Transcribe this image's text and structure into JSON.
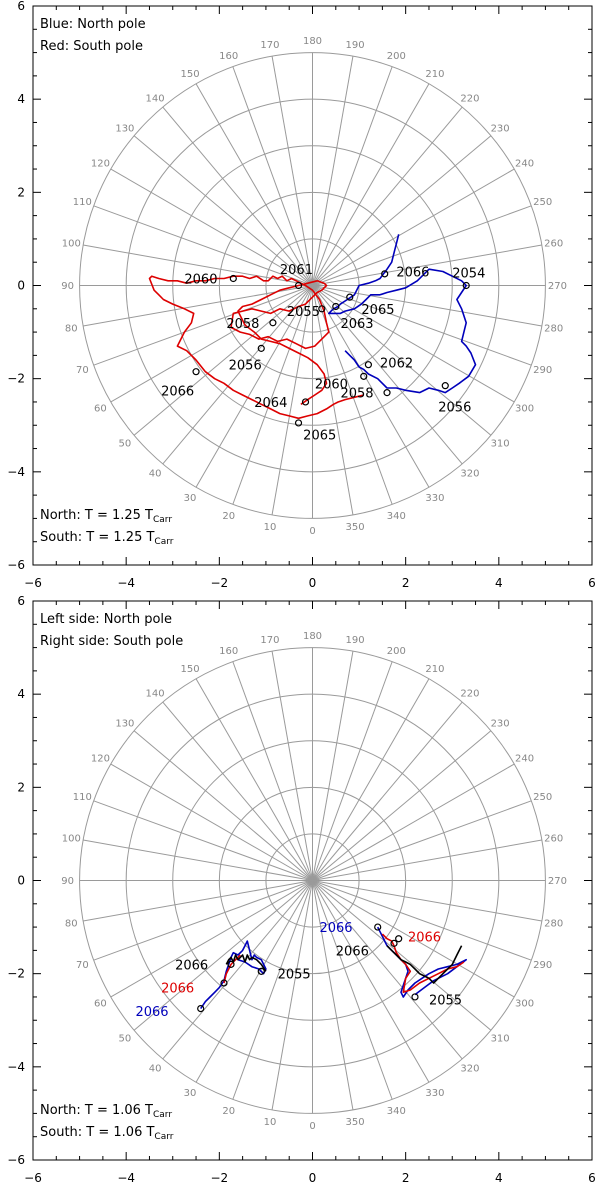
{
  "colors": {
    "north": "#0000bb",
    "south": "#dd0000",
    "black": "#000000",
    "grid": "#9a9a9a"
  },
  "chart_data": [
    {
      "type": "polar-trajectory",
      "title": "",
      "xlim": [
        -6,
        6
      ],
      "ylim": [
        -6,
        6
      ],
      "x_ticks": [
        -6,
        -4,
        -2,
        0,
        2,
        4,
        6
      ],
      "y_ticks": [
        -6,
        -4,
        -2,
        0,
        2,
        4,
        6
      ],
      "x_tick_labels": [
        "−6",
        "−4",
        "−2",
        "0",
        "2",
        "4",
        "6"
      ],
      "y_tick_labels": [
        "−6",
        "−4",
        "−2",
        "0",
        "2",
        "4",
        "6"
      ],
      "grid_radii": [
        1,
        2,
        3,
        4,
        5
      ],
      "angle_labels": [
        "0",
        "10",
        "20",
        "30",
        "40",
        "50",
        "60",
        "70",
        "80",
        "90",
        "100",
        "110",
        "120",
        "130",
        "140",
        "150",
        "160",
        "170",
        "180",
        "190",
        "200",
        "210",
        "220",
        "230",
        "240",
        "250",
        "260",
        "270",
        "280",
        "290",
        "300",
        "310",
        "320",
        "330",
        "340",
        "350"
      ],
      "legend": [
        {
          "text": "Blue: North pole",
          "color": "#0000bb"
        },
        {
          "text": "Red: South pole",
          "color": "#dd0000"
        }
      ],
      "period": [
        {
          "prefix": "North: T = 1.25 T",
          "sub": "Carr",
          "color": "#0000bb"
        },
        {
          "prefix": "South: T = 1.25 T",
          "sub": "Carr",
          "color": "#dd0000"
        }
      ],
      "series": [
        {
          "name": "North pole",
          "color": "#0000bb",
          "x": [
            1.85,
            1.8,
            1.75,
            1.7,
            1.6,
            1.5,
            1.45,
            1.35,
            1.2,
            1.0,
            0.9,
            0.75,
            0.6,
            0.55,
            0.45,
            0.4,
            0.35,
            0.6,
            0.7,
            0.9,
            1.05,
            1.15,
            1.25,
            1.45,
            1.6,
            1.8,
            2.0,
            2.25,
            2.5,
            2.8,
            3.0,
            3.2,
            3.3,
            3.1,
            3.2,
            3.3,
            3.25,
            3.2,
            3.3,
            3.4,
            3.5,
            3.35,
            3.15,
            3.0,
            2.85,
            2.7,
            2.5,
            2.3,
            2.0,
            1.8,
            1.6,
            1.4,
            1.2,
            1.1,
            1.0,
            0.9,
            0.8,
            0.7
          ],
          "y": [
            1.1,
            0.9,
            0.7,
            0.5,
            0.35,
            0.22,
            0.15,
            0.1,
            0.05,
            0.0,
            -0.2,
            -0.3,
            -0.4,
            -0.45,
            -0.5,
            -0.55,
            -0.6,
            -0.6,
            -0.55,
            -0.5,
            -0.4,
            -0.3,
            -0.2,
            -0.2,
            -0.15,
            -0.1,
            -0.05,
            0.1,
            0.35,
            0.3,
            0.2,
            0.1,
            0.0,
            -0.3,
            -0.5,
            -0.8,
            -1.0,
            -1.2,
            -1.3,
            -1.45,
            -1.7,
            -1.95,
            -2.1,
            -2.2,
            -2.3,
            -2.25,
            -2.2,
            -2.3,
            -2.25,
            -2.2,
            -2.2,
            -2.0,
            -1.9,
            -1.8,
            -1.75,
            -1.6,
            -1.5,
            -1.4
          ]
        },
        {
          "name": "South pole",
          "color": "#dd0000",
          "x": [
            1.1,
            0.9,
            0.7,
            0.55,
            0.45,
            0.3,
            0.1,
            -0.1,
            -0.3,
            -0.5,
            -0.7,
            -0.9,
            -1.1,
            -1.3,
            -1.5,
            -1.7,
            -1.9,
            -2.1,
            -2.3,
            -2.5,
            -2.7,
            -2.9,
            -2.75,
            -2.6,
            -2.55,
            -2.75,
            -3.0,
            -3.2,
            -3.3,
            -3.4,
            -3.5,
            -3.45,
            -3.3,
            -3.1,
            -2.9,
            -2.7,
            -2.5,
            -2.3,
            -2.1,
            -1.9,
            -1.7,
            -1.5,
            -1.35,
            -1.2,
            -1.05,
            -0.95,
            -0.85,
            -0.75,
            -0.65,
            -0.55,
            -0.45,
            -0.35,
            -0.25,
            -0.15,
            0.0,
            0.15,
            0.25,
            0.3,
            0.35,
            0.2,
            0.05,
            -0.15,
            -0.35,
            -0.55,
            -0.75,
            -0.95,
            -1.15,
            -1.35,
            -1.55,
            -1.75,
            -1.7,
            -1.5,
            -1.3,
            -1.1,
            -0.9,
            -0.7,
            -0.5,
            -0.3,
            -0.15,
            0.0,
            0.1,
            0.2,
            0.3,
            0.25,
            0.1,
            -0.1,
            -0.3,
            -0.5,
            -0.7,
            -0.9,
            -1.1,
            -1.3,
            -1.5,
            -1.6,
            -1.45,
            -1.25,
            -1.1,
            -0.9,
            -0.7,
            -0.5,
            -0.3,
            -0.1,
            0.1,
            0.25,
            0.3,
            0.2,
            0.05,
            -0.1,
            -0.25
          ],
          "y": [
            -2.35,
            -2.4,
            -2.45,
            -2.5,
            -2.55,
            -2.65,
            -2.75,
            -2.8,
            -2.85,
            -2.8,
            -2.75,
            -2.65,
            -2.55,
            -2.45,
            -2.35,
            -2.25,
            -2.1,
            -2.0,
            -1.85,
            -1.6,
            -1.4,
            -1.3,
            -1.0,
            -0.8,
            -0.6,
            -0.5,
            -0.4,
            -0.3,
            -0.2,
            -0.1,
            0.15,
            0.2,
            0.15,
            0.1,
            0.1,
            0.05,
            0.1,
            0.1,
            0.15,
            0.15,
            0.2,
            0.2,
            0.15,
            0.2,
            0.1,
            0.1,
            0.2,
            0.15,
            0.2,
            0.1,
            0.15,
            0.1,
            0.05,
            0.0,
            -0.1,
            -0.3,
            -0.55,
            -0.8,
            -1.0,
            -1.15,
            -1.3,
            -1.35,
            -1.25,
            -1.15,
            -1.2,
            -1.1,
            -1.15,
            -1.05,
            -1.0,
            -0.9,
            -0.6,
            -0.55,
            -0.5,
            -0.55,
            -0.6,
            -0.5,
            -0.55,
            -0.45,
            -0.4,
            -0.25,
            -0.15,
            -0.1,
            0.0,
            0.05,
            0.1,
            0.05,
            0.0,
            -0.05,
            -0.1,
            -0.2,
            -0.3,
            -0.4,
            -0.45,
            -0.55,
            -0.85,
            -1.0,
            -1.15,
            -1.2,
            -1.25,
            -1.35,
            -1.45,
            -1.55,
            -1.7,
            -1.9,
            -2.1,
            -2.25,
            -2.35,
            -2.45,
            -2.55
          ]
        }
      ],
      "annotations": [
        {
          "text": "2054",
          "x": 3.3,
          "y": 0.0,
          "color": "#000000",
          "dx": -0.3,
          "dy": 0.28
        },
        {
          "text": "2066",
          "x": 1.55,
          "y": 0.25,
          "color": "#000000",
          "dx": 0.25,
          "dy": 0.05
        },
        {
          "text": "2065",
          "x": 0.8,
          "y": -0.25,
          "color": "#000000",
          "dx": 0.25,
          "dy": -0.25
        },
        {
          "text": "2063",
          "x": 0.5,
          "y": -0.45,
          "color": "#000000",
          "dx": 0.1,
          "dy": -0.35
        },
        {
          "text": "2062",
          "x": 1.2,
          "y": -1.7,
          "color": "#000000",
          "dx": 0.25,
          "dy": 0.05
        },
        {
          "text": "2060",
          "x": 1.1,
          "y": -1.95,
          "color": "#000000",
          "dx": -1.05,
          "dy": -0.15
        },
        {
          "text": "2058",
          "x": 1.6,
          "y": -2.3,
          "color": "#000000",
          "dx": -1.0,
          "dy": 0.0
        },
        {
          "text": "2056",
          "x": 2.85,
          "y": -2.15,
          "color": "#000000",
          "dx": -0.15,
          "dy": -0.45
        },
        {
          "text": "2061",
          "x": -0.3,
          "y": 0.0,
          "color": "#000000",
          "dx": -0.4,
          "dy": 0.35
        },
        {
          "text": "2060",
          "x": -1.7,
          "y": 0.15,
          "color": "#000000",
          "dx": -1.05,
          "dy": 0.0
        },
        {
          "text": "2055",
          "x": 0.2,
          "y": -0.5,
          "color": "#000000",
          "dx": -0.75,
          "dy": -0.05
        },
        {
          "text": "2058",
          "x": -0.85,
          "y": -0.8,
          "color": "#000000",
          "dx": -1.0,
          "dy": 0.0
        },
        {
          "text": "2056",
          "x": -1.1,
          "y": -1.35,
          "color": "#000000",
          "dx": -0.7,
          "dy": -0.35
        },
        {
          "text": "2066",
          "x": -2.5,
          "y": -1.85,
          "color": "#000000",
          "dx": -0.75,
          "dy": -0.4
        },
        {
          "text": "2064",
          "x": -0.15,
          "y": -2.5,
          "color": "#000000",
          "dx": -1.1,
          "dy": 0.0
        },
        {
          "text": "2065",
          "x": -0.3,
          "y": -2.95,
          "color": "#000000",
          "dx": 0.1,
          "dy": -0.25
        }
      ]
    },
    {
      "type": "polar-trajectory",
      "title": "",
      "xlim": [
        -6,
        6
      ],
      "ylim": [
        -6,
        6
      ],
      "x_ticks": [
        -6,
        -4,
        -2,
        0,
        2,
        4,
        6
      ],
      "y_ticks": [
        -6,
        -4,
        -2,
        0,
        2,
        4,
        6
      ],
      "x_tick_labels": [
        "−6",
        "−4",
        "−2",
        "0",
        "2",
        "4",
        "6"
      ],
      "y_tick_labels": [
        "−6",
        "−4",
        "−2",
        "0",
        "2",
        "4",
        "6"
      ],
      "grid_radii": [
        1,
        2,
        3,
        4,
        5
      ],
      "angle_labels": [
        "0",
        "10",
        "20",
        "30",
        "40",
        "50",
        "60",
        "70",
        "80",
        "90",
        "100",
        "110",
        "120",
        "130",
        "140",
        "150",
        "160",
        "170",
        "180",
        "190",
        "200",
        "210",
        "220",
        "230",
        "240",
        "250",
        "260",
        "270",
        "280",
        "290",
        "300",
        "310",
        "320",
        "330",
        "340",
        "350"
      ],
      "legend": [
        {
          "text": "Left side: North pole",
          "color": "#000000"
        },
        {
          "text": "Right side: South pole",
          "color": "#000000"
        }
      ],
      "period": [
        {
          "prefix": "North: T = 1.06 T",
          "sub": "Carr",
          "color": "#000000"
        },
        {
          "prefix": "South: T = 1.06 T",
          "sub": "Carr",
          "color": "#000000"
        }
      ],
      "series": [
        {
          "name": "North pole (blue)",
          "color": "#0000bb",
          "x": [
            -2.4,
            -2.3,
            -2.2,
            -2.1,
            -2.0,
            -1.9,
            -1.85,
            -1.8,
            -1.75,
            -1.7,
            -1.6,
            -1.5,
            -1.45,
            -1.4,
            -1.35,
            -1.3,
            -1.25,
            -1.2,
            -1.1,
            -1.05,
            -1.0,
            -1.05,
            -1.15,
            -1.3,
            -1.45,
            -1.6
          ],
          "y": [
            -2.75,
            -2.6,
            -2.5,
            -2.4,
            -2.3,
            -2.15,
            -1.95,
            -1.8,
            -1.65,
            -1.55,
            -1.6,
            -1.5,
            -1.4,
            -1.3,
            -1.5,
            -1.7,
            -1.6,
            -1.65,
            -1.7,
            -1.8,
            -1.9,
            -2.0,
            -1.9,
            -1.85,
            -1.75,
            -1.7
          ]
        },
        {
          "name": "North pole (red)",
          "color": "#dd0000",
          "x": [
            -1.9,
            -1.85,
            -1.8,
            -1.75,
            -1.7,
            -1.65,
            -1.6,
            -1.55
          ],
          "y": [
            -2.2,
            -2.0,
            -1.9,
            -1.8,
            -1.75,
            -1.7,
            -1.65,
            -1.6
          ]
        },
        {
          "name": "North pole (black)",
          "color": "#000000",
          "x": [
            -1.85,
            -1.8,
            -1.75,
            -1.7,
            -1.65,
            -1.6,
            -1.55,
            -1.5,
            -1.45,
            -1.4,
            -1.35,
            -1.3,
            -1.2,
            -1.1,
            -1.0
          ],
          "y": [
            -1.8,
            -1.7,
            -1.65,
            -1.75,
            -1.6,
            -1.7,
            -1.65,
            -1.6,
            -1.75,
            -1.6,
            -1.7,
            -1.65,
            -1.7,
            -1.8,
            -1.95
          ]
        },
        {
          "name": "South pole (blue)",
          "color": "#0000bb",
          "x": [
            1.4,
            1.45,
            1.5,
            1.55,
            1.6,
            1.7,
            1.8,
            1.9,
            2.0,
            2.05,
            2.0,
            1.95,
            1.9,
            1.95,
            2.05,
            2.2,
            2.35,
            2.5,
            2.7,
            2.9,
            3.1,
            3.3,
            3.1,
            2.9,
            2.6,
            2.4,
            2.2
          ],
          "y": [
            -1.0,
            -1.1,
            -1.2,
            -1.3,
            -1.4,
            -1.5,
            -1.6,
            -1.7,
            -1.8,
            -1.95,
            -2.1,
            -2.25,
            -2.4,
            -2.5,
            -2.35,
            -2.2,
            -2.1,
            -2.0,
            -1.9,
            -1.85,
            -1.8,
            -1.7,
            -1.85,
            -2.0,
            -2.15,
            -2.3,
            -2.45
          ]
        },
        {
          "name": "South pole (red)",
          "color": "#dd0000",
          "x": [
            1.5,
            1.6,
            1.7,
            1.75,
            1.8,
            1.9,
            2.0,
            2.1,
            2.0,
            1.95,
            2.1,
            2.3,
            2.5,
            2.7,
            2.9,
            3.1,
            3.25
          ],
          "y": [
            -1.15,
            -1.25,
            -1.3,
            -1.4,
            -1.55,
            -1.7,
            -1.8,
            -1.95,
            -2.1,
            -2.4,
            -2.35,
            -2.2,
            -2.1,
            -2.0,
            -1.9,
            -1.85,
            -1.75
          ]
        },
        {
          "name": "South pole (black)",
          "color": "#000000",
          "x": [
            1.6,
            1.7,
            1.8,
            1.9,
            2.0,
            2.1,
            2.2,
            2.3,
            2.4,
            2.5,
            2.6,
            2.7,
            2.85,
            3.0,
            3.1,
            3.2
          ],
          "y": [
            -1.4,
            -1.5,
            -1.6,
            -1.7,
            -1.75,
            -1.8,
            -1.9,
            -2.0,
            -2.05,
            -2.1,
            -2.2,
            -2.1,
            -1.95,
            -1.8,
            -1.6,
            -1.4
          ]
        }
      ],
      "annotations": [
        {
          "text": "2066",
          "x": -2.4,
          "y": -2.75,
          "color": "#0000bb",
          "dx": -1.4,
          "dy": -0.05
        },
        {
          "text": "2066",
          "x": -1.9,
          "y": -2.2,
          "color": "#dd0000",
          "dx": -1.35,
          "dy": -0.1
        },
        {
          "text": "2066",
          "x": -1.75,
          "y": -1.8,
          "color": "#000000",
          "dx": -1.2,
          "dy": 0.0
        },
        {
          "text": "2055",
          "x": -1.1,
          "y": -1.95,
          "color": "#000000",
          "dx": 0.35,
          "dy": -0.05
        },
        {
          "text": "2066",
          "x": 1.4,
          "y": -1.0,
          "color": "#0000bb",
          "dx": -1.25,
          "dy": 0.0
        },
        {
          "text": "2066",
          "x": 1.75,
          "y": -1.35,
          "color": "#000000",
          "dx": -1.25,
          "dy": -0.15
        },
        {
          "text": "2066",
          "x": 1.85,
          "y": -1.25,
          "color": "#dd0000",
          "dx": 0.2,
          "dy": 0.05
        },
        {
          "text": "2055",
          "x": 2.2,
          "y": -2.5,
          "color": "#000000",
          "dx": 0.3,
          "dy": -0.05
        }
      ]
    }
  ]
}
